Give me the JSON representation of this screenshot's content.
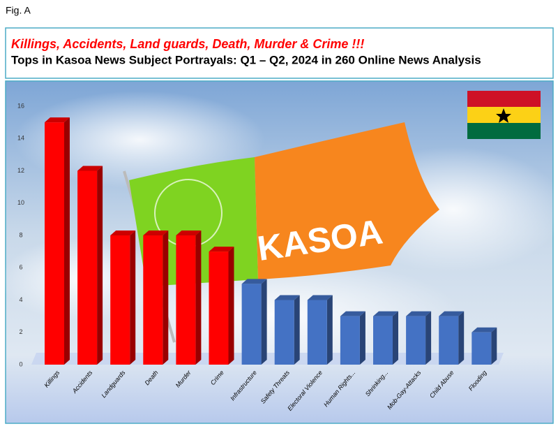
{
  "figure_label": "Fig. A",
  "background_flag_text": "KASOA",
  "chart_data": {
    "type": "bar",
    "title": "Killings, Accidents, Land guards, Death, Murder & Crime !!!",
    "subtitle": "Tops in Kasoa News Subject Portrayals: Q1  – Q2, 2024 in 260 Online News Analysis",
    "categories": [
      "Killings",
      "Accidents",
      "Landguards",
      "Death",
      "Murder",
      "Crime",
      "Infrastructure",
      "Safety Threats",
      "Electoral Violence",
      "Human Rights...",
      "Shrinking...",
      "Mob-Gay-Attacks",
      "Child Abuse",
      "Flooding"
    ],
    "values": [
      15,
      12,
      8,
      8,
      8,
      7,
      5,
      4,
      4,
      3,
      3,
      3,
      3,
      2
    ],
    "colors": [
      "#ff0000",
      "#ff0000",
      "#ff0000",
      "#ff0000",
      "#ff0000",
      "#ff0000",
      "#4472c4",
      "#4472c4",
      "#4472c4",
      "#4472c4",
      "#4472c4",
      "#4472c4",
      "#4472c4",
      "#4472c4"
    ],
    "ylim": [
      0,
      16
    ],
    "yticks": [
      0,
      2,
      4,
      6,
      8,
      10,
      12,
      14,
      16
    ]
  }
}
